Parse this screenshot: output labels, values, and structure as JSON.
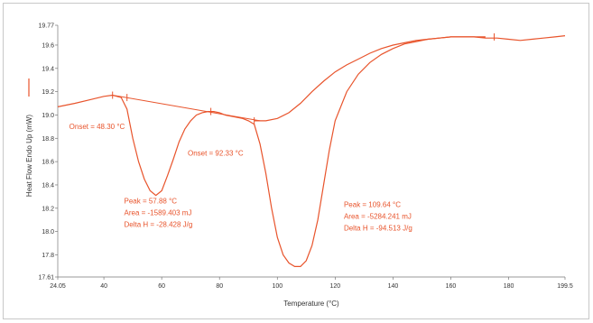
{
  "chart_data": {
    "type": "line",
    "xlabel": "Temperature (°C)",
    "ylabel": "Heat Flow Endo Up (mW)",
    "xlim": [
      24.05,
      199.5
    ],
    "ylim": [
      17.61,
      19.77
    ],
    "x_tick_labels": [
      "24.05",
      "40",
      "60",
      "80",
      "100",
      "120",
      "140",
      "160",
      "180",
      "199.5"
    ],
    "x_tick_values": [
      24.05,
      40,
      60,
      80,
      100,
      120,
      140,
      160,
      180,
      199.5
    ],
    "y_tick_labels": [
      "17.61",
      "17.8",
      "18.0",
      "18.2",
      "18.4",
      "18.6",
      "18.8",
      "19.0",
      "19.2",
      "19.4",
      "19.6",
      "19.77"
    ],
    "y_tick_values": [
      17.61,
      17.8,
      18.0,
      18.2,
      18.4,
      18.6,
      18.8,
      19.0,
      19.2,
      19.4,
      19.6,
      19.77
    ],
    "line_color": "#e8542c",
    "grid": false,
    "series": [
      {
        "name": "",
        "x": [
          24.05,
          30,
          35,
          40,
          43,
          46,
          48,
          50,
          52,
          54,
          56,
          58,
          60,
          62,
          64,
          66,
          68,
          70,
          72,
          74,
          76,
          78,
          80,
          82,
          84,
          86,
          88,
          90,
          92,
          94,
          96,
          98,
          100,
          102,
          104,
          106,
          108,
          110,
          112,
          114,
          116,
          118,
          120,
          124,
          128,
          132,
          136,
          140,
          144,
          148,
          152,
          156,
          160,
          164,
          168,
          172,
          176,
          180,
          184,
          188,
          192,
          196,
          199.5
        ],
        "y": [
          19.07,
          19.1,
          19.13,
          19.16,
          19.17,
          19.15,
          19.05,
          18.8,
          18.6,
          18.45,
          18.35,
          18.31,
          18.35,
          18.48,
          18.62,
          18.77,
          18.88,
          18.95,
          19.0,
          19.02,
          19.03,
          19.03,
          19.02,
          19.0,
          18.99,
          18.98,
          18.97,
          18.95,
          18.92,
          18.75,
          18.5,
          18.2,
          17.95,
          17.8,
          17.73,
          17.7,
          17.7,
          17.75,
          17.88,
          18.1,
          18.4,
          18.7,
          18.95,
          19.2,
          19.35,
          19.45,
          19.52,
          19.57,
          19.61,
          19.63,
          19.65,
          19.66,
          19.67,
          19.67,
          19.67,
          19.66,
          19.66,
          19.65,
          19.64,
          19.65,
          19.66,
          19.67,
          19.68
        ]
      }
    ],
    "return_curve": {
      "x": [
        92,
        96,
        100,
        104,
        108,
        112,
        116,
        120,
        124,
        128,
        132,
        136,
        140,
        144,
        148,
        152,
        156,
        160,
        164,
        168,
        172
      ],
      "y": [
        18.95,
        18.95,
        18.97,
        19.02,
        19.1,
        19.2,
        19.29,
        19.37,
        19.43,
        19.48,
        19.53,
        19.57,
        19.6,
        19.62,
        19.64,
        19.65,
        19.66,
        19.67,
        19.67,
        19.67,
        19.67
      ]
    },
    "baseline": {
      "x": [
        43,
        94
      ],
      "y": [
        19.17,
        18.95
      ]
    },
    "markers": [
      {
        "x": 43,
        "y": 19.17
      },
      {
        "x": 48,
        "y": 19.15
      },
      {
        "x": 77,
        "y": 19.03
      },
      {
        "x": 92,
        "y": 18.95
      },
      {
        "x": 175,
        "y": 19.67
      }
    ],
    "annotations": [
      {
        "text": "Onset = 48.30 °C",
        "x": 28,
        "y": 18.88
      },
      {
        "text": "Onset = 92.33 °C",
        "x": 69,
        "y": 18.65
      },
      {
        "text": "Peak = 57.88 °C",
        "x": 47,
        "y": 18.24
      },
      {
        "text": "Area = -1589.403 mJ",
        "x": 47,
        "y": 18.14
      },
      {
        "text": "Delta H = -28.428 J/g",
        "x": 47,
        "y": 18.04
      },
      {
        "text": "Peak = 109.64 °C",
        "x": 123,
        "y": 18.21
      },
      {
        "text": "Area = -5284.241 mJ",
        "x": 123,
        "y": 18.11
      },
      {
        "text": "Delta H = -94.513 J/g",
        "x": 123,
        "y": 18.01
      }
    ]
  }
}
